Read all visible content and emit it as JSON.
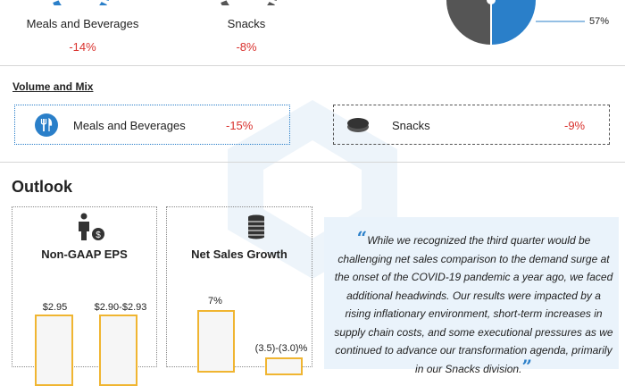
{
  "segments": {
    "meals": {
      "label": "Meals and Beverages",
      "change": "-14%"
    },
    "snacks": {
      "label": "Snacks",
      "change": "-8%"
    },
    "pie_label": "57%"
  },
  "volume_mix": {
    "title": "Volume and Mix",
    "items": [
      {
        "label": "Meals and Beverages",
        "change": "-15%",
        "icon": "fork-knife-icon"
      },
      {
        "label": "Snacks",
        "change": "-9%",
        "icon": "cookie-icon"
      }
    ]
  },
  "outlook": {
    "title": "Outlook",
    "eps": {
      "title": "Non-GAAP EPS",
      "bars": [
        {
          "label": "$2.95",
          "value": 2.95
        },
        {
          "label": "$2.90-$2.93",
          "value": 2.93
        }
      ]
    },
    "sales": {
      "title": "Net Sales Growth",
      "bars": [
        {
          "label": "7%",
          "value": 7
        },
        {
          "label": "(3.5)-(3.0)%",
          "value": -3.0
        }
      ]
    }
  },
  "quote": {
    "text": "While we recognized the third quarter would be challenging net sales comparison to the demand surge at the onset of the COVID-19 pandemic a year ago, we faced additional headwinds. Our results were impacted by a rising inflationary environment, short-term increases in supply chain costs, and some executional pressures as we continued to advance our transformation agenda, primarily in our Snacks division."
  },
  "colors": {
    "accent": "#2a7fc9",
    "negative": "#d9322e",
    "bar_border": "#f0b531",
    "donut_dark": "#555555"
  }
}
